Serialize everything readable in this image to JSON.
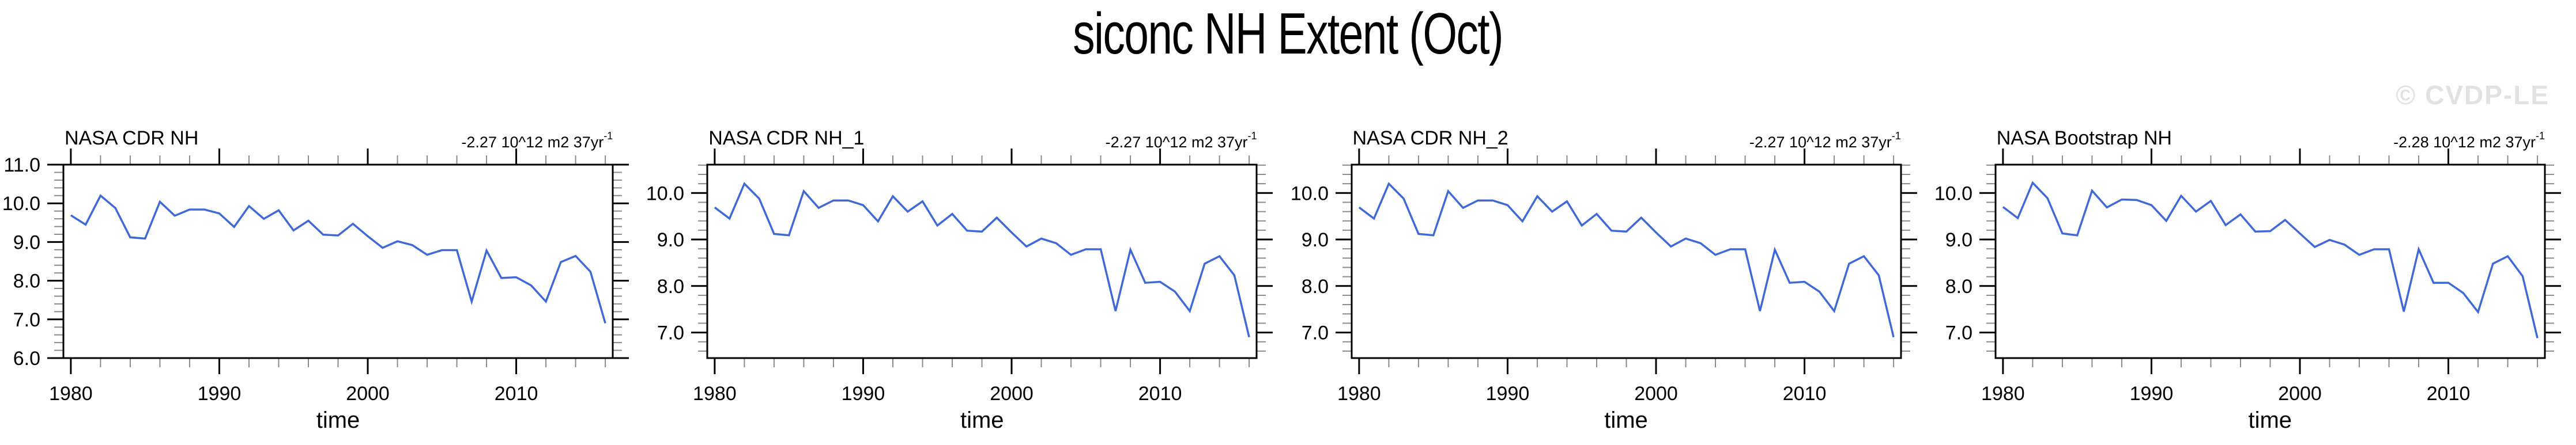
{
  "title": "siconc NH Extent (Oct)",
  "watermark": "© CVDP-LE",
  "style": {
    "line_color": "#4169d6",
    "watermark_color": "#e2e2e2",
    "axis_color": "#000000",
    "minor_tick_color": "#8a8a8a"
  },
  "chart_data": [
    {
      "type": "line",
      "title": "NASA CDR NH",
      "trend_label": "-2.27 10^12 m2 37yr",
      "trend_sup": "-1",
      "xlabel": "time",
      "ylabel": "",
      "xlim": [
        1979.5,
        2016.5
      ],
      "ylim": [
        6.0,
        11.0
      ],
      "xticks": [
        1980,
        1990,
        2000,
        2010
      ],
      "xtick_labels": [
        "1980",
        "1990",
        "2000",
        "2010"
      ],
      "yticks": [
        6.0,
        7.0,
        8.0,
        9.0,
        10.0,
        11.0
      ],
      "ytick_labels": [
        "6.0",
        "7.0",
        "8.0",
        "9.0",
        "10.0",
        "11.0"
      ],
      "minor_x_step": 2,
      "minor_y_step": 0.2,
      "grid": false,
      "years": [
        1980,
        1981,
        1982,
        1983,
        1984,
        1985,
        1986,
        1987,
        1988,
        1989,
        1990,
        1991,
        1992,
        1993,
        1994,
        1995,
        1996,
        1997,
        1998,
        1999,
        2000,
        2001,
        2002,
        2003,
        2004,
        2005,
        2006,
        2007,
        2008,
        2009,
        2010,
        2011,
        2012,
        2013,
        2014,
        2015,
        2016
      ],
      "values": [
        9.69,
        9.45,
        10.2,
        9.88,
        9.12,
        9.09,
        10.04,
        9.68,
        9.84,
        9.84,
        9.74,
        9.39,
        9.93,
        9.6,
        9.82,
        9.3,
        9.55,
        9.19,
        9.17,
        9.47,
        9.15,
        8.85,
        9.02,
        8.92,
        8.67,
        8.79,
        8.79,
        7.46,
        8.78,
        8.07,
        8.09,
        7.88,
        7.46,
        8.48,
        8.64,
        8.23,
        6.9
      ]
    },
    {
      "type": "line",
      "title": "NASA CDR NH_1",
      "trend_label": "-2.27 10^12 m2 37yr",
      "trend_sup": "-1",
      "xlabel": "time",
      "ylabel": "",
      "xlim": [
        1979.5,
        2016.5
      ],
      "ylim": [
        6.45,
        10.61
      ],
      "xticks": [
        1980,
        1990,
        2000,
        2010
      ],
      "xtick_labels": [
        "1980",
        "1990",
        "2000",
        "2010"
      ],
      "yticks": [
        7.0,
        8.0,
        9.0,
        10.0
      ],
      "ytick_labels": [
        "7.0",
        "8.0",
        "9.0",
        "10.0"
      ],
      "minor_x_step": 2,
      "minor_y_step": 0.2,
      "grid": false,
      "years": [
        1980,
        1981,
        1982,
        1983,
        1984,
        1985,
        1986,
        1987,
        1988,
        1989,
        1990,
        1991,
        1992,
        1993,
        1994,
        1995,
        1996,
        1997,
        1998,
        1999,
        2000,
        2001,
        2002,
        2003,
        2004,
        2005,
        2006,
        2007,
        2008,
        2009,
        2010,
        2011,
        2012,
        2013,
        2014,
        2015,
        2016
      ],
      "values": [
        9.69,
        9.45,
        10.2,
        9.88,
        9.12,
        9.09,
        10.04,
        9.68,
        9.84,
        9.84,
        9.74,
        9.39,
        9.93,
        9.6,
        9.82,
        9.3,
        9.55,
        9.19,
        9.17,
        9.47,
        9.15,
        8.85,
        9.02,
        8.92,
        8.67,
        8.79,
        8.79,
        7.46,
        8.78,
        8.07,
        8.09,
        7.88,
        7.46,
        8.48,
        8.64,
        8.23,
        6.9
      ]
    },
    {
      "type": "line",
      "title": "NASA CDR NH_2",
      "trend_label": "-2.27 10^12 m2 37yr",
      "trend_sup": "-1",
      "xlabel": "time",
      "ylabel": "",
      "xlim": [
        1979.5,
        2016.5
      ],
      "ylim": [
        6.45,
        10.61
      ],
      "xticks": [
        1980,
        1990,
        2000,
        2010
      ],
      "xtick_labels": [
        "1980",
        "1990",
        "2000",
        "2010"
      ],
      "yticks": [
        7.0,
        8.0,
        9.0,
        10.0
      ],
      "ytick_labels": [
        "7.0",
        "8.0",
        "9.0",
        "10.0"
      ],
      "minor_x_step": 2,
      "minor_y_step": 0.2,
      "grid": false,
      "years": [
        1980,
        1981,
        1982,
        1983,
        1984,
        1985,
        1986,
        1987,
        1988,
        1989,
        1990,
        1991,
        1992,
        1993,
        1994,
        1995,
        1996,
        1997,
        1998,
        1999,
        2000,
        2001,
        2002,
        2003,
        2004,
        2005,
        2006,
        2007,
        2008,
        2009,
        2010,
        2011,
        2012,
        2013,
        2014,
        2015,
        2016
      ],
      "values": [
        9.69,
        9.45,
        10.2,
        9.88,
        9.12,
        9.09,
        10.04,
        9.68,
        9.84,
        9.84,
        9.74,
        9.39,
        9.93,
        9.6,
        9.82,
        9.3,
        9.55,
        9.19,
        9.17,
        9.47,
        9.15,
        8.85,
        9.02,
        8.92,
        8.67,
        8.79,
        8.79,
        7.46,
        8.78,
        8.07,
        8.09,
        7.88,
        7.46,
        8.48,
        8.64,
        8.23,
        6.9
      ]
    },
    {
      "type": "line",
      "title": "NASA Bootstrap NH",
      "trend_label": "-2.28 10^12 m2 37yr",
      "trend_sup": "-1",
      "xlabel": "time",
      "ylabel": "",
      "xlim": [
        1979.5,
        2016.5
      ],
      "ylim": [
        6.45,
        10.61
      ],
      "xticks": [
        1980,
        1990,
        2000,
        2010
      ],
      "xtick_labels": [
        "1980",
        "1990",
        "2000",
        "2010"
      ],
      "yticks": [
        7.0,
        8.0,
        9.0,
        10.0
      ],
      "ytick_labels": [
        "7.0",
        "8.0",
        "9.0",
        "10.0"
      ],
      "minor_x_step": 2,
      "minor_y_step": 0.2,
      "grid": false,
      "years": [
        1980,
        1981,
        1982,
        1983,
        1984,
        1985,
        1986,
        1987,
        1988,
        1989,
        1990,
        1991,
        1992,
        1993,
        1994,
        1995,
        1996,
        1997,
        1998,
        1999,
        2000,
        2001,
        2002,
        2003,
        2004,
        2005,
        2006,
        2007,
        2008,
        2009,
        2010,
        2011,
        2012,
        2013,
        2014,
        2015,
        2016
      ],
      "values": [
        9.7,
        9.46,
        10.22,
        9.89,
        9.13,
        9.09,
        10.05,
        9.69,
        9.86,
        9.85,
        9.74,
        9.4,
        9.94,
        9.6,
        9.83,
        9.31,
        9.54,
        9.17,
        9.18,
        9.42,
        9.13,
        8.84,
        8.99,
        8.89,
        8.67,
        8.79,
        8.79,
        7.45,
        8.79,
        8.07,
        8.07,
        7.85,
        7.44,
        8.48,
        8.64,
        8.21,
        6.88
      ]
    }
  ]
}
